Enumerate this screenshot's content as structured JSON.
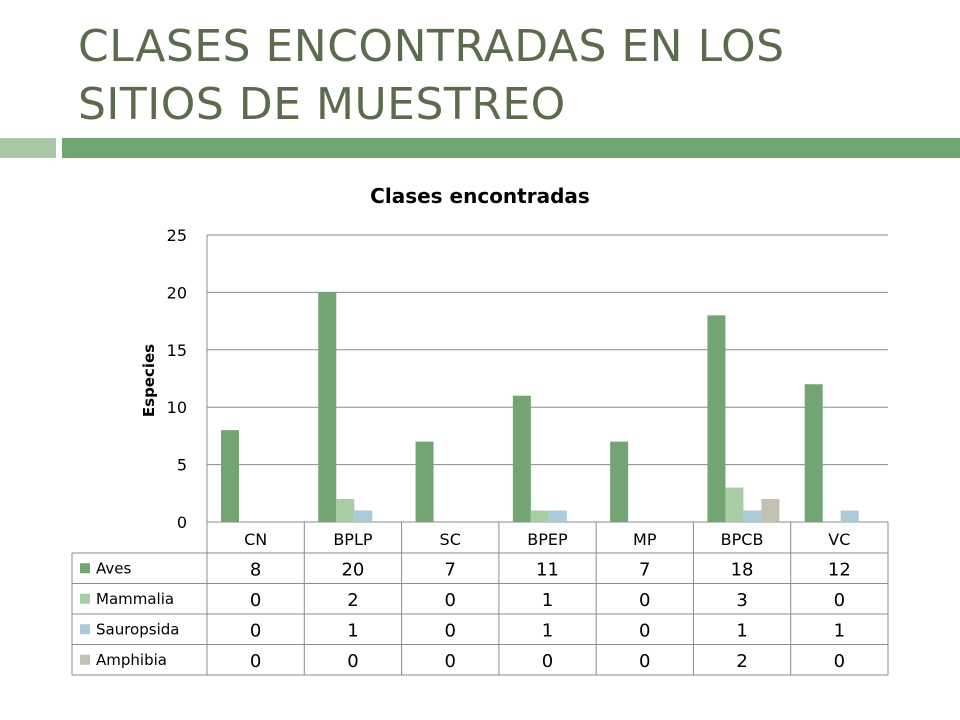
{
  "slide": {
    "title_line1": "CLASES ENCONTRADAS EN LOS",
    "title_line2": "SITIOS DE MUESTREO"
  },
  "chart_data": {
    "type": "bar",
    "title": "Clases encontradas",
    "xlabel": "",
    "ylabel": "Especies",
    "ylim": [
      0,
      25
    ],
    "yticks": [
      0,
      5,
      10,
      15,
      20,
      25
    ],
    "grid": true,
    "legend": "data-table-left",
    "categories": [
      "CN",
      "BPLP",
      "SC",
      "BPEP",
      "MP",
      "BPCB",
      "VC"
    ],
    "series": [
      {
        "name": "Aves",
        "color": "#73a474",
        "values": [
          8,
          20,
          7,
          11,
          7,
          18,
          12
        ]
      },
      {
        "name": "Mammalia",
        "color": "#a9cca6",
        "values": [
          0,
          2,
          0,
          1,
          0,
          3,
          0
        ]
      },
      {
        "name": "Sauropsida",
        "color": "#a9ccd8",
        "values": [
          0,
          1,
          0,
          1,
          0,
          1,
          1
        ]
      },
      {
        "name": "Amphibia",
        "color": "#c2bfb3",
        "values": [
          0,
          0,
          0,
          0,
          0,
          2,
          0
        ]
      }
    ]
  }
}
